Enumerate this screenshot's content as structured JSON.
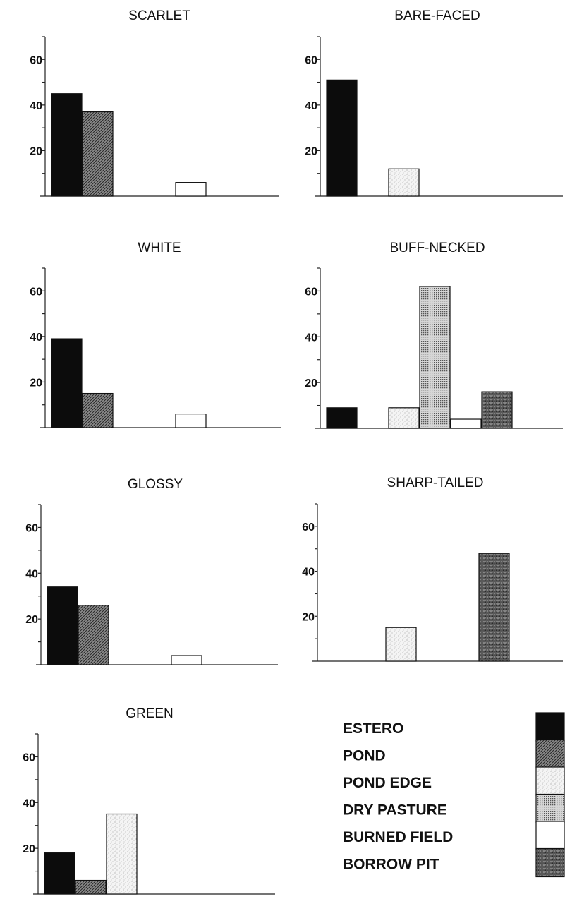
{
  "chart_data": [
    {
      "type": "bar",
      "title": "SCARLET",
      "categories": [
        "ESTERO",
        "POND",
        "POND EDGE",
        "DRY PASTURE",
        "BURNED FIELD",
        "BORROW PIT"
      ],
      "values": [
        45,
        37,
        0,
        0,
        6,
        0
      ],
      "yticks": [
        "20",
        "40",
        "60"
      ],
      "ylim": [
        0,
        70
      ]
    },
    {
      "type": "bar",
      "title": "BARE-FACED",
      "categories": [
        "ESTERO",
        "POND",
        "POND EDGE",
        "DRY PASTURE",
        "BURNED FIELD",
        "BORROW PIT"
      ],
      "values": [
        51,
        0,
        12,
        0,
        0,
        0
      ],
      "yticks": [
        "20",
        "40",
        "60"
      ],
      "ylim": [
        0,
        70
      ]
    },
    {
      "type": "bar",
      "title": "WHITE",
      "categories": [
        "ESTERO",
        "POND",
        "POND EDGE",
        "DRY PASTURE",
        "BURNED FIELD",
        "BORROW PIT"
      ],
      "values": [
        39,
        15,
        0,
        0,
        6,
        0
      ],
      "yticks": [
        "20",
        "40",
        "60"
      ],
      "ylim": [
        0,
        70
      ]
    },
    {
      "type": "bar",
      "title": "BUFF-NECKED",
      "categories": [
        "ESTERO",
        "POND",
        "POND EDGE",
        "DRY PASTURE",
        "BURNED FIELD",
        "BORROW PIT"
      ],
      "values": [
        9,
        0,
        9,
        62,
        4,
        16
      ],
      "yticks": [
        "20",
        "40",
        "60"
      ],
      "ylim": [
        0,
        70
      ]
    },
    {
      "type": "bar",
      "title": "GLOSSY",
      "categories": [
        "ESTERO",
        "POND",
        "POND EDGE",
        "DRY PASTURE",
        "BURNED FIELD",
        "BORROW PIT"
      ],
      "values": [
        34,
        26,
        0,
        0,
        4,
        0
      ],
      "yticks": [
        "20",
        "40",
        "60"
      ],
      "ylim": [
        0,
        70
      ]
    },
    {
      "type": "bar",
      "title": "SHARP-TAILED",
      "categories": [
        "ESTERO",
        "POND",
        "POND EDGE",
        "DRY PASTURE",
        "BURNED FIELD",
        "BORROW PIT"
      ],
      "values": [
        0,
        0,
        15,
        0,
        0,
        48
      ],
      "yticks": [
        "20",
        "40",
        "60"
      ],
      "ylim": [
        0,
        70
      ]
    },
    {
      "type": "bar",
      "title": "GREEN",
      "categories": [
        "ESTERO",
        "POND",
        "POND EDGE",
        "DRY PASTURE",
        "BURNED FIELD",
        "BORROW PIT"
      ],
      "values": [
        18,
        6,
        35,
        0,
        0,
        0
      ],
      "yticks": [
        "20",
        "40",
        "60"
      ],
      "ylim": [
        0,
        70
      ]
    }
  ],
  "legend": [
    {
      "label": "ESTERO",
      "fill": "solid-black"
    },
    {
      "label": "POND",
      "fill": "diagonal-hatch"
    },
    {
      "label": "POND EDGE",
      "fill": "light-stipple"
    },
    {
      "label": "DRY PASTURE",
      "fill": "fine-grid"
    },
    {
      "label": "BURNED FIELD",
      "fill": "white"
    },
    {
      "label": "BORROW PIT",
      "fill": "dark-stipple"
    }
  ]
}
